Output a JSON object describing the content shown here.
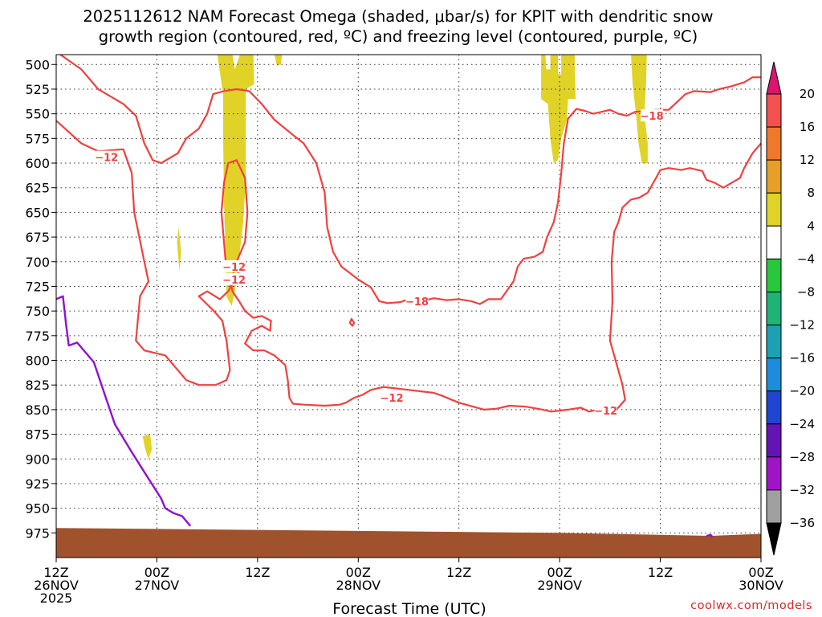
{
  "chart_data": {
    "type": "time-height cross-section",
    "title_line1": "2025112612 NAM Forecast Omega (shaded, μbar/s) for KPIT with dendritic snow",
    "title_line2": "growth region (contoured, red, ºC) and freezing level (contoured, purple, ºC)",
    "xlabel": "Forecast Time (UTC)",
    "credit": "coolwx.com/models",
    "y_axis": {
      "range": [
        1000,
        490
      ],
      "ticks": [
        500,
        525,
        550,
        575,
        600,
        625,
        650,
        675,
        700,
        725,
        750,
        775,
        800,
        825,
        850,
        875,
        900,
        925,
        950,
        975
      ]
    },
    "x_axis": {
      "range_hours": [
        0,
        84
      ],
      "ticks": [
        {
          "h": 0,
          "l1": "12Z",
          "l2": "26NOV",
          "l3": "2025"
        },
        {
          "h": 12,
          "l1": "00Z",
          "l2": "27NOV",
          "l3": ""
        },
        {
          "h": 24,
          "l1": "12Z",
          "l2": "",
          "l3": ""
        },
        {
          "h": 36,
          "l1": "00Z",
          "l2": "28NOV",
          "l3": ""
        },
        {
          "h": 48,
          "l1": "12Z",
          "l2": "",
          "l3": ""
        },
        {
          "h": 60,
          "l1": "00Z",
          "l2": "29NOV",
          "l3": ""
        },
        {
          "h": 72,
          "l1": "12Z",
          "l2": "",
          "l3": ""
        },
        {
          "h": 84,
          "l1": "00Z",
          "l2": "30NOV",
          "l3": ""
        }
      ]
    },
    "colorbar": {
      "labels": [
        "20",
        "16",
        "12",
        "8",
        "4",
        "−4",
        "−8",
        "−12",
        "−16",
        "−20",
        "−24",
        "−28",
        "−32",
        "−36"
      ],
      "colors": [
        "#f55050",
        "#f0782a",
        "#e6a028",
        "#e1d228",
        "#ffffff",
        "#28c83c",
        "#1eb478",
        "#1ea0b4",
        "#1e8cdc",
        "#1e46d2",
        "#6414b4",
        "#a014c8",
        "#a0a0a0"
      ],
      "top_color": "#dc146e",
      "bottom_color": "#000000"
    },
    "omega_shaded": [
      {
        "value": 4,
        "color": "#e1d228",
        "points": [
          [
            19.2,
            490
          ],
          [
            21.0,
            490
          ],
          [
            21.3,
            505
          ],
          [
            21.9,
            490
          ],
          [
            23.5,
            490
          ],
          [
            23.6,
            520
          ],
          [
            22.6,
            525
          ],
          [
            22.6,
            560
          ],
          [
            22.6,
            615
          ],
          [
            22.3,
            660
          ],
          [
            21.6,
            710
          ],
          [
            21.3,
            730
          ],
          [
            20.9,
            745
          ],
          [
            20.3,
            735
          ],
          [
            20.2,
            690
          ],
          [
            20.0,
            640
          ],
          [
            19.9,
            575
          ],
          [
            19.9,
            530
          ]
        ]
      },
      {
        "value": 4,
        "color": "#e1d228",
        "points": [
          [
            26.0,
            490
          ],
          [
            26.9,
            490
          ],
          [
            26.8,
            500
          ],
          [
            26.3,
            501
          ]
        ]
      },
      {
        "value": 4,
        "color": "#e1d228",
        "points": [
          [
            14.6,
            665
          ],
          [
            14.9,
            690
          ],
          [
            14.7,
            710
          ],
          [
            14.4,
            680
          ]
        ]
      },
      {
        "value": 4,
        "color": "#e1d228",
        "points": [
          [
            10.3,
            877
          ],
          [
            11.2,
            875
          ],
          [
            11.4,
            890
          ],
          [
            11.0,
            900
          ],
          [
            10.6,
            890
          ]
        ]
      },
      {
        "value": 4,
        "color": "#e1d228",
        "points": [
          [
            57.8,
            490
          ],
          [
            58.3,
            490
          ],
          [
            58.4,
            505
          ],
          [
            58.9,
            505
          ],
          [
            58.9,
            490
          ],
          [
            59.8,
            490
          ],
          [
            59.8,
            510
          ],
          [
            60.2,
            510
          ],
          [
            60.2,
            490
          ],
          [
            61.8,
            490
          ],
          [
            61.9,
            535
          ],
          [
            61.0,
            535
          ],
          [
            60.9,
            555
          ],
          [
            60.2,
            575
          ],
          [
            59.8,
            597
          ],
          [
            59.3,
            600
          ],
          [
            58.9,
            575
          ],
          [
            58.6,
            540
          ],
          [
            57.8,
            535
          ]
        ]
      },
      {
        "value": 4,
        "color": "#e1d228",
        "points": [
          [
            68.5,
            490
          ],
          [
            70.4,
            490
          ],
          [
            70.3,
            520
          ],
          [
            70.1,
            550
          ],
          [
            70.5,
            580
          ],
          [
            70.5,
            600
          ],
          [
            69.8,
            600
          ],
          [
            69.4,
            580
          ],
          [
            69.1,
            550
          ],
          [
            68.7,
            520
          ]
        ]
      }
    ],
    "terrain_color": "#a0522d",
    "dgz_contours": [
      {
        "label": "-12",
        "closed": false,
        "points": [
          [
            0,
            557
          ],
          [
            3,
            580
          ],
          [
            5,
            588
          ],
          [
            8,
            586
          ],
          [
            9,
            610
          ],
          [
            9.3,
            650
          ],
          [
            10.5,
            700
          ],
          [
            11,
            720
          ],
          [
            10,
            735
          ],
          [
            9.5,
            780
          ],
          [
            10.5,
            790
          ],
          [
            13,
            795
          ],
          [
            14.5,
            810
          ],
          [
            15.5,
            820
          ],
          [
            17,
            825
          ],
          [
            19,
            825
          ],
          [
            20.3,
            820
          ],
          [
            20.7,
            810
          ],
          [
            20.3,
            780
          ],
          [
            19.8,
            760
          ],
          [
            18.8,
            750
          ],
          [
            17.6,
            740
          ],
          [
            17,
            735
          ],
          [
            18,
            730
          ],
          [
            19.5,
            738
          ],
          [
            20.5,
            730
          ],
          [
            21.5,
            715
          ],
          [
            21.8,
            710
          ]
        ]
      },
      {
        "label": "-12",
        "closed": false,
        "points": [
          [
            0.5,
            490
          ],
          [
            3,
            505
          ],
          [
            5,
            525
          ],
          [
            8,
            540
          ],
          [
            9.5,
            552
          ],
          [
            10.5,
            580
          ],
          [
            11.5,
            597
          ],
          [
            12.5,
            600
          ],
          [
            13.5,
            595
          ],
          [
            14.5,
            590
          ],
          [
            15.5,
            575
          ],
          [
            17,
            565
          ],
          [
            18,
            550
          ],
          [
            18.7,
            530
          ],
          [
            20,
            527
          ],
          [
            21.5,
            525
          ],
          [
            23,
            527
          ],
          [
            24.5,
            540
          ],
          [
            26,
            556
          ],
          [
            28,
            570
          ],
          [
            29.5,
            580
          ],
          [
            31,
            600
          ],
          [
            32,
            630
          ],
          [
            32.3,
            665
          ],
          [
            33,
            690
          ],
          [
            34,
            705
          ],
          [
            36,
            718
          ],
          [
            37.5,
            726
          ],
          [
            38.5,
            740
          ],
          [
            39.5,
            742
          ],
          [
            41,
            741
          ],
          [
            42,
            738
          ],
          [
            43.5,
            740
          ],
          [
            45,
            737
          ],
          [
            46.5,
            739
          ],
          [
            48,
            738
          ],
          [
            49.5,
            740
          ],
          [
            50.5,
            743
          ],
          [
            51.5,
            738
          ],
          [
            53,
            738
          ],
          [
            54.5,
            720
          ],
          [
            55,
            705
          ],
          [
            55.7,
            697
          ],
          [
            57,
            695
          ],
          [
            58,
            690
          ],
          [
            58.5,
            675
          ],
          [
            59.3,
            660
          ],
          [
            59.8,
            640
          ],
          [
            60.2,
            610
          ],
          [
            60.5,
            580
          ],
          [
            61,
            555
          ],
          [
            62,
            545
          ],
          [
            63,
            547
          ],
          [
            64,
            550
          ],
          [
            65,
            548
          ],
          [
            66,
            546
          ],
          [
            67,
            550
          ],
          [
            68,
            552
          ],
          [
            69,
            548
          ],
          [
            70.5,
            547
          ],
          [
            71.5,
            546
          ],
          [
            73,
            546
          ],
          [
            74,
            538
          ],
          [
            75,
            530
          ],
          [
            76,
            527
          ],
          [
            78,
            528
          ],
          [
            79,
            525
          ],
          [
            80.5,
            522
          ],
          [
            82,
            518
          ],
          [
            83,
            513
          ],
          [
            84,
            513
          ]
        ]
      },
      {
        "label": "-12",
        "closed": false,
        "points": [
          [
            84,
            580
          ],
          [
            83,
            590
          ],
          [
            82,
            605
          ],
          [
            81.5,
            615
          ],
          [
            80.5,
            620
          ],
          [
            79.5,
            625
          ],
          [
            78.5,
            620
          ],
          [
            77.5,
            617
          ],
          [
            77,
            608
          ],
          [
            75.5,
            605
          ],
          [
            74.5,
            607
          ],
          [
            73,
            605
          ],
          [
            72,
            607
          ],
          [
            71.5,
            615
          ],
          [
            70.5,
            630
          ],
          [
            69.5,
            635
          ],
          [
            68.5,
            637
          ],
          [
            67.5,
            645
          ],
          [
            67,
            660
          ],
          [
            66.5,
            670
          ],
          [
            66.2,
            700
          ],
          [
            66.3,
            740
          ],
          [
            66,
            780
          ],
          [
            67,
            810
          ],
          [
            67.5,
            825
          ],
          [
            67.8,
            840
          ],
          [
            67,
            848
          ],
          [
            65.5,
            852
          ],
          [
            64.5,
            850
          ],
          [
            63.5,
            852
          ],
          [
            62.5,
            848
          ],
          [
            61,
            850
          ],
          [
            59,
            852
          ],
          [
            58,
            850
          ],
          [
            56,
            847
          ],
          [
            54,
            846
          ],
          [
            52.5,
            849
          ],
          [
            51,
            850
          ],
          [
            48,
            843
          ],
          [
            46,
            836
          ],
          [
            45,
            833
          ],
          [
            42,
            830
          ],
          [
            40,
            828
          ],
          [
            39,
            827
          ],
          [
            37.5,
            830
          ],
          [
            36.5,
            835
          ],
          [
            35.5,
            838
          ],
          [
            34.5,
            843
          ],
          [
            33.8,
            845
          ],
          [
            32,
            846
          ],
          [
            29.5,
            845
          ],
          [
            28.2,
            844
          ],
          [
            27.8,
            838
          ],
          [
            27.6,
            820
          ],
          [
            27.3,
            805
          ],
          [
            26,
            795
          ],
          [
            24.8,
            790
          ],
          [
            23.5,
            790
          ],
          [
            22.5,
            783
          ],
          [
            23.3,
            770
          ],
          [
            24.5,
            765
          ],
          [
            25.5,
            770
          ],
          [
            25.6,
            760
          ],
          [
            24.5,
            755
          ],
          [
            23.5,
            757
          ],
          [
            22.5,
            750
          ],
          [
            21.8,
            740
          ],
          [
            21,
            730
          ],
          [
            20.8,
            720
          ],
          [
            21.5,
            700
          ],
          [
            22.5,
            680
          ],
          [
            22.8,
            650
          ],
          [
            22.5,
            615
          ],
          [
            21.5,
            597
          ],
          [
            20.5,
            600
          ],
          [
            20,
            620
          ],
          [
            19.7,
            650
          ],
          [
            20,
            680
          ],
          [
            20.2,
            700
          ]
        ]
      },
      {
        "label": "",
        "closed": true,
        "points": [
          [
            35.2,
            758
          ],
          [
            35.5,
            762
          ],
          [
            35.3,
            765
          ],
          [
            35.0,
            762
          ]
        ]
      }
    ],
    "freezing_level": {
      "label": "",
      "points": [
        [
          0,
          738
        ],
        [
          0.8,
          735
        ],
        [
          1.2,
          765
        ],
        [
          1.5,
          785
        ],
        [
          2.5,
          782
        ],
        [
          4.5,
          802
        ],
        [
          6,
          840
        ],
        [
          7,
          865
        ],
        [
          9,
          893
        ],
        [
          11,
          920
        ],
        [
          12.5,
          940
        ],
        [
          13,
          950
        ],
        [
          14,
          955
        ],
        [
          15,
          958
        ],
        [
          16,
          968
        ]
      ]
    },
    "freezing_level_2": [
      [
        77.5,
        978
      ],
      [
        78,
        977
      ],
      [
        78.2,
        979
      ]
    ],
    "contour_labels": [
      {
        "text": "−12",
        "h": 6.0,
        "p": 594
      },
      {
        "text": "−12",
        "h": 21.2,
        "p": 705
      },
      {
        "text": "−12",
        "h": 21.2,
        "p": 718
      },
      {
        "text": "−18",
        "h": 43.0,
        "p": 740
      },
      {
        "text": "−12",
        "h": 40.0,
        "p": 838
      },
      {
        "text": "−12",
        "h": 65.5,
        "p": 851
      },
      {
        "text": "−18",
        "h": 71.0,
        "p": 552
      }
    ]
  }
}
